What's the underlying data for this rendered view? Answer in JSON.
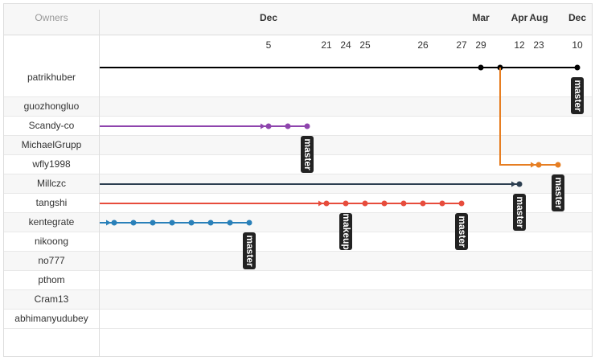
{
  "header": {
    "title": "Owners"
  },
  "timeline": {
    "months": [
      "Dec",
      "Mar",
      "Apr",
      "Aug",
      "Dec"
    ],
    "days": [
      "5",
      "21",
      "24",
      "25",
      "26",
      "27",
      "29",
      "12",
      "23",
      "10"
    ]
  },
  "owners": [
    "patrikhuber",
    "guozhongluo",
    "Scandy-co",
    "MichaelGrupp",
    "wfly1998",
    "Millczc",
    "tangshi",
    "kentegrate",
    "nikoong",
    "no777",
    "pthom",
    "Cram13",
    "abhimanyudubey"
  ],
  "branches": [
    {
      "color": "#000000",
      "labels": [
        "master"
      ]
    },
    {
      "color": "#8e44ad",
      "labels": [
        "master"
      ]
    },
    {
      "color": "#e67e22",
      "labels": [
        "master"
      ]
    },
    {
      "color": "#2c3e50",
      "labels": [
        "master"
      ]
    },
    {
      "color": "#e74c3c",
      "labels": [
        "makeup",
        "master"
      ]
    },
    {
      "color": "#2980b9",
      "labels": [
        "master"
      ]
    }
  ]
}
